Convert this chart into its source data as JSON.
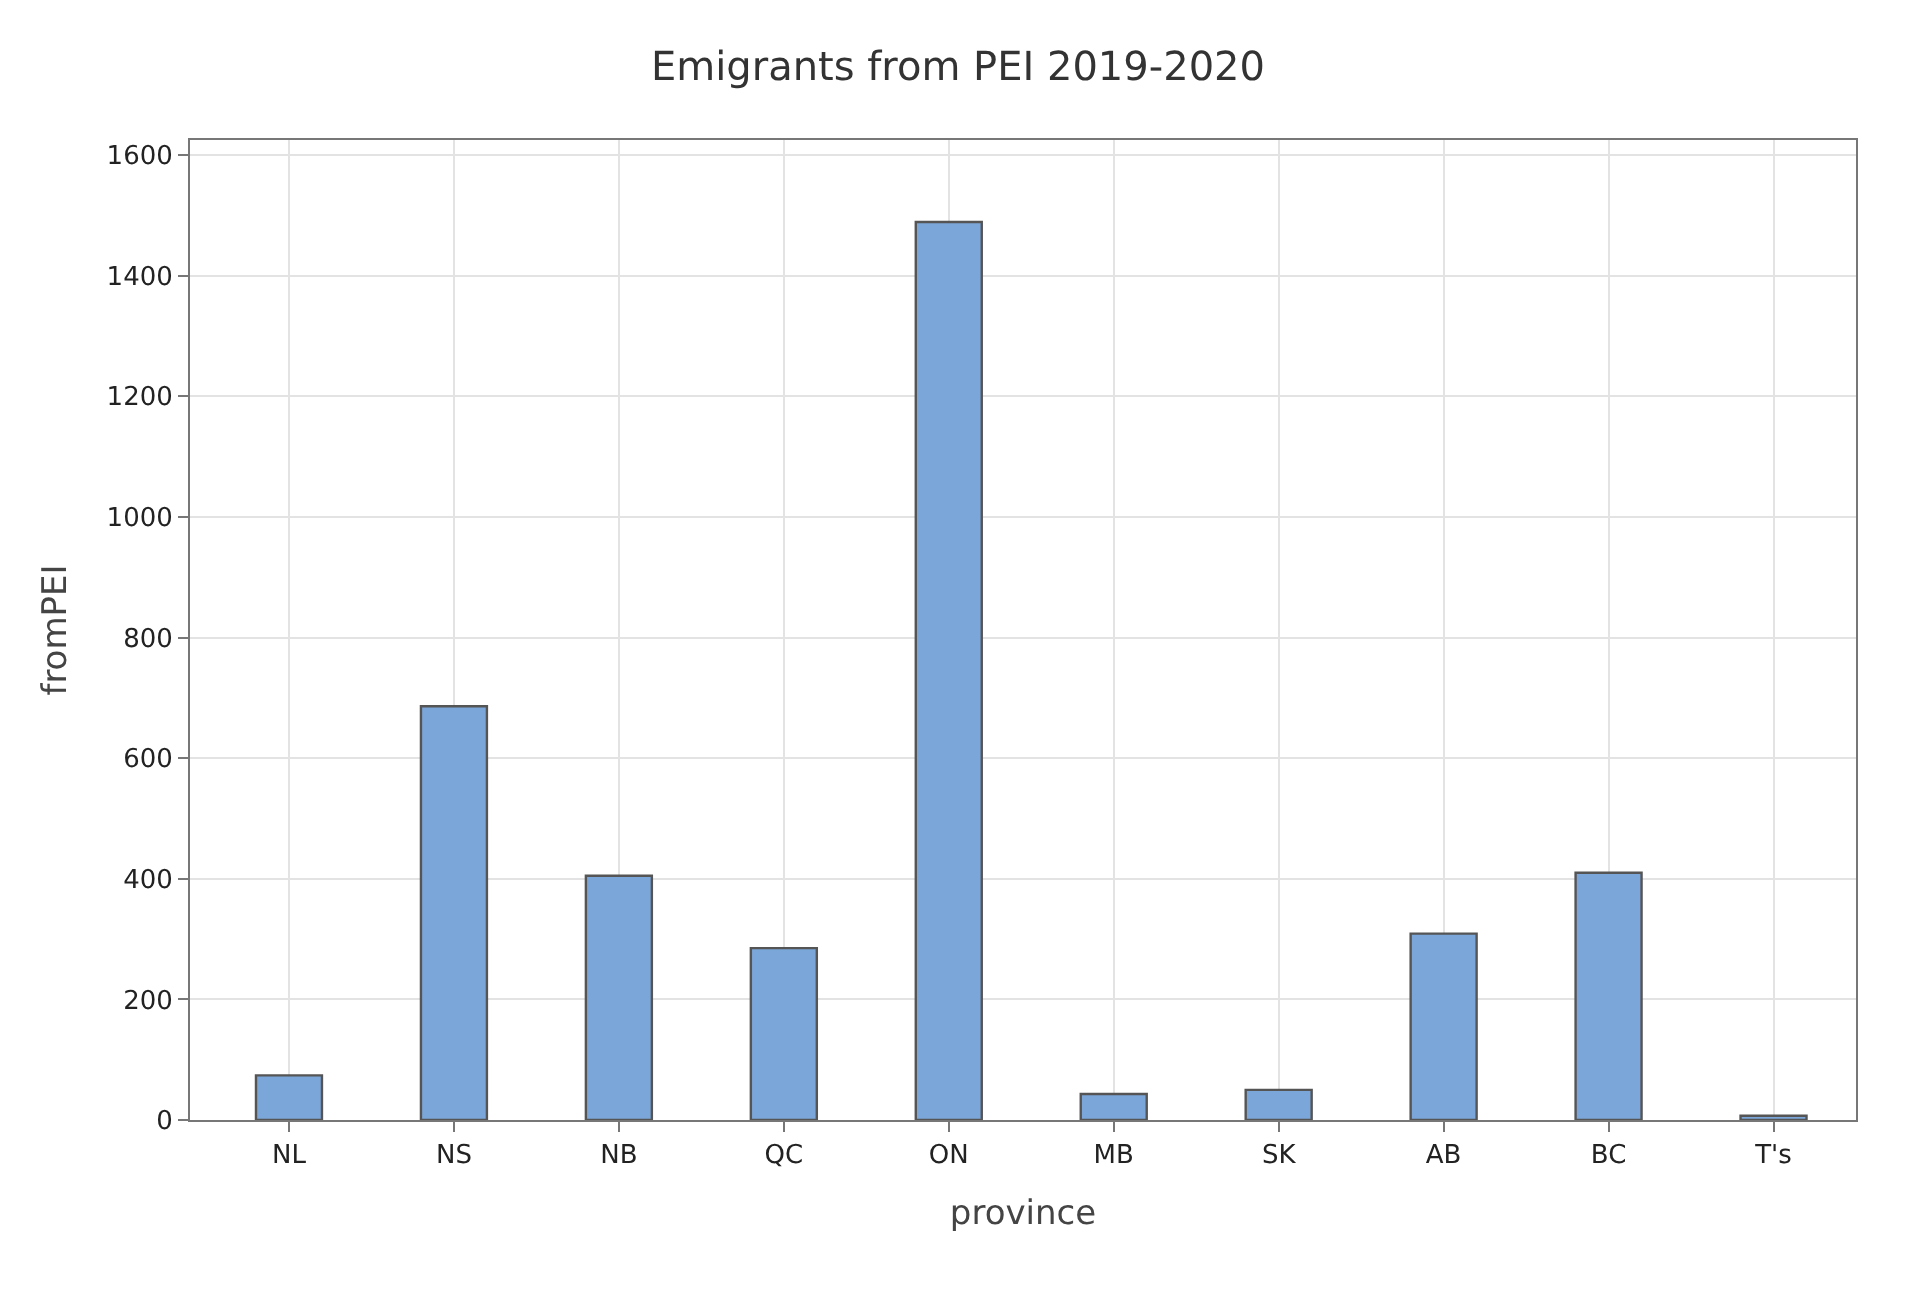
{
  "chart_data": {
    "type": "bar",
    "title": "Emigrants from PEI 2019-2020",
    "xlabel": "province",
    "ylabel": "fromPEI",
    "categories": [
      "NL",
      "NS",
      "NB",
      "QC",
      "ON",
      "MB",
      "SK",
      "AB",
      "BC",
      "T's"
    ],
    "values": [
      74,
      686,
      405,
      285,
      1489,
      43,
      50,
      309,
      410,
      7
    ],
    "color": "#7ba6d9",
    "ylim": [
      0,
      1625
    ],
    "yticks": [
      0,
      200,
      400,
      600,
      800,
      1000,
      1200,
      1400,
      1600
    ],
    "grid": true,
    "legend": false
  }
}
